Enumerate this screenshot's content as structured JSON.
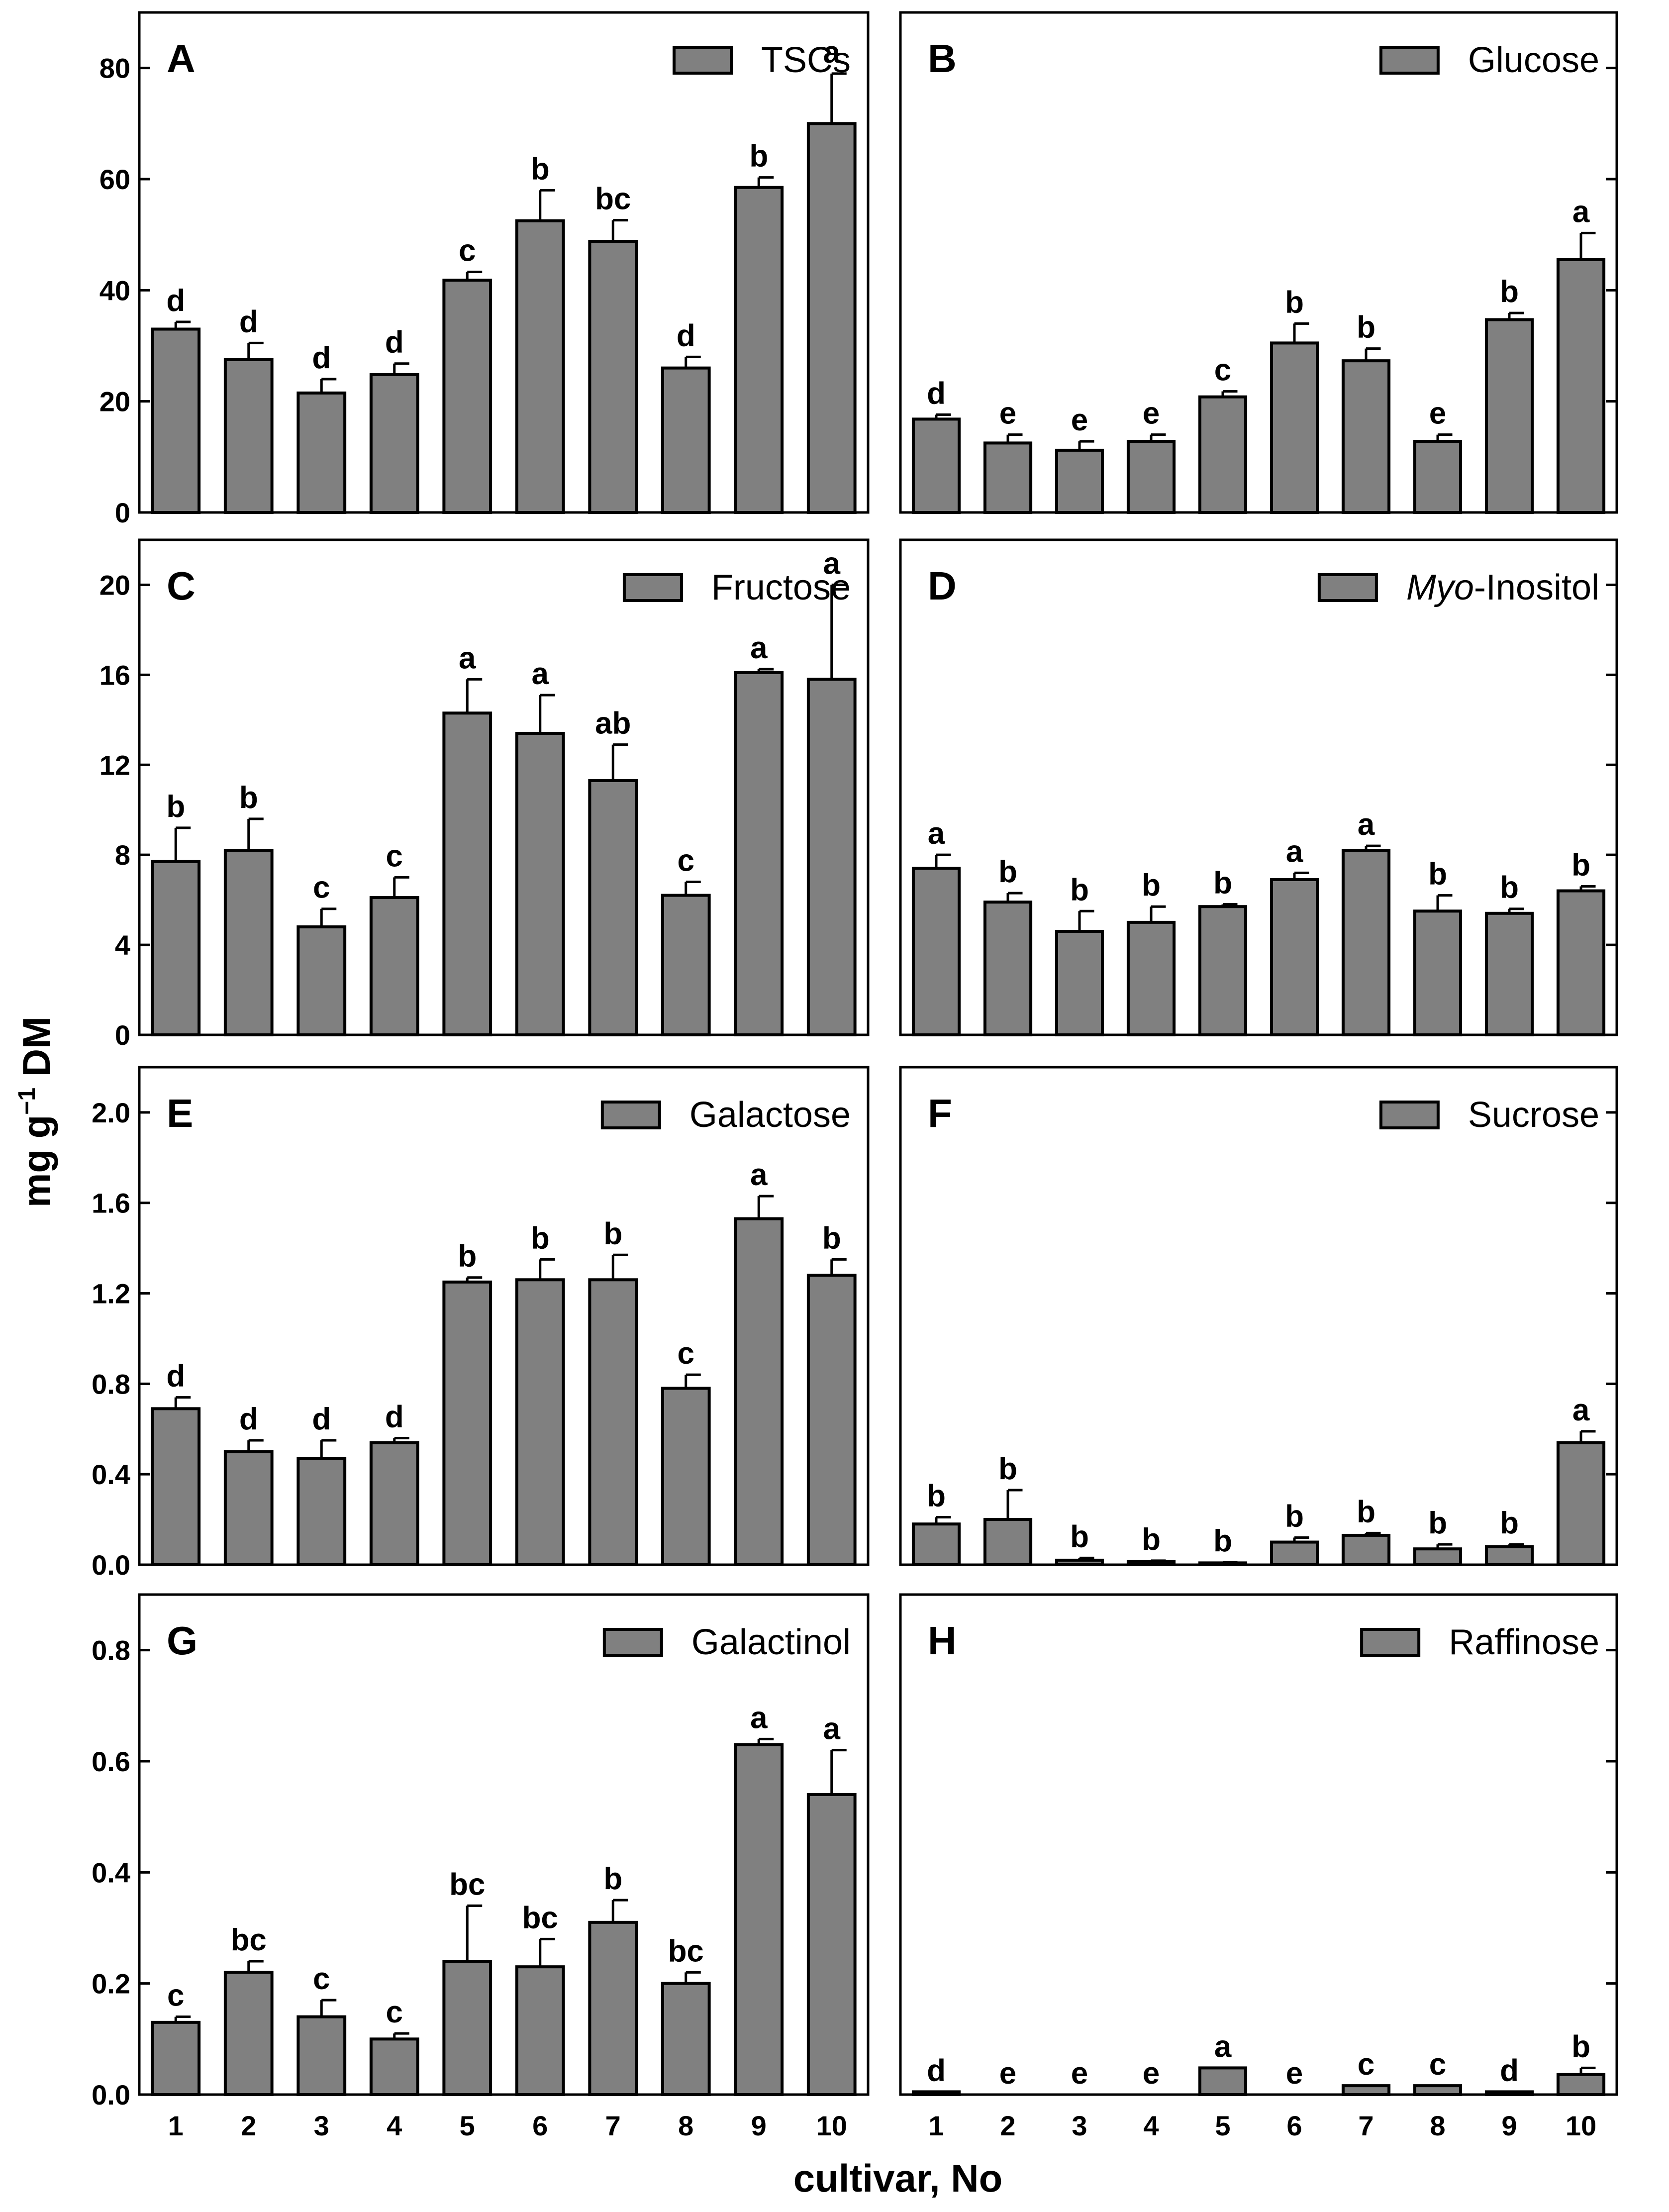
{
  "figure": {
    "ylabel_main": "mg g",
    "ylabel_sup": "−1",
    "ylabel_rest": " DM",
    "xlabel": "cultivar, No"
  },
  "chart_data": [
    {
      "panel": "A",
      "type": "bar",
      "legend": "TSCs",
      "legend_prefix": "",
      "legend_italic": "",
      "categories": [
        "1",
        "2",
        "3",
        "4",
        "5",
        "6",
        "7",
        "8",
        "9",
        "10"
      ],
      "values": [
        33,
        27.5,
        21.5,
        24.8,
        41.8,
        52.5,
        48.8,
        26,
        58.5,
        70
      ],
      "errors": [
        1.3,
        3,
        2.5,
        2,
        1.5,
        5.5,
        3.8,
        2,
        1.8,
        9
      ],
      "letters": [
        "d",
        "d",
        "d",
        "d",
        "c",
        "b",
        "bc",
        "d",
        "b",
        "a"
      ],
      "ylim": [
        0,
        90
      ],
      "yticks": [
        0,
        20,
        40,
        60,
        80
      ],
      "yticklabels": [
        "0",
        "20",
        "40",
        "60",
        "80"
      ]
    },
    {
      "panel": "B",
      "type": "bar",
      "legend": "Glucose",
      "legend_prefix": "",
      "legend_italic": "",
      "categories": [
        "1",
        "2",
        "3",
        "4",
        "5",
        "6",
        "7",
        "8",
        "9",
        "10"
      ],
      "values": [
        16.8,
        12.5,
        11.2,
        12.8,
        20.8,
        30.5,
        27.3,
        12.8,
        34.7,
        45.5
      ],
      "errors": [
        0.8,
        1.5,
        1.6,
        1.2,
        1,
        3.5,
        2.2,
        1.2,
        1.2,
        4.8
      ],
      "letters": [
        "d",
        "e",
        "e",
        "e",
        "c",
        "b",
        "b",
        "e",
        "b",
        "a"
      ],
      "ylim": [
        0,
        90
      ],
      "yticks": [
        0,
        20,
        40,
        60,
        80
      ],
      "yticklabels": []
    },
    {
      "panel": "C",
      "type": "bar",
      "legend": "Fructose",
      "legend_prefix": "",
      "legend_italic": "",
      "categories": [
        "1",
        "2",
        "3",
        "4",
        "5",
        "6",
        "7",
        "8",
        "9",
        "10"
      ],
      "values": [
        7.7,
        8.2,
        4.8,
        6.1,
        14.3,
        13.4,
        11.3,
        6.2,
        16.1,
        15.8
      ],
      "errors": [
        1.5,
        1.4,
        0.8,
        0.9,
        1.5,
        1.7,
        1.6,
        0.6,
        0.15,
        4.2
      ],
      "letters": [
        "b",
        "b",
        "c",
        "c",
        "a",
        "a",
        "ab",
        "c",
        "a",
        "a"
      ],
      "ylim": [
        0,
        22
      ],
      "yticks": [
        0,
        4,
        8,
        12,
        16,
        20
      ],
      "yticklabels": [
        "0",
        "4",
        "8",
        "12",
        "16",
        "20"
      ]
    },
    {
      "panel": "D",
      "type": "bar",
      "legend": "-Inositol",
      "legend_prefix": "",
      "legend_italic": "Myo",
      "categories": [
        "1",
        "2",
        "3",
        "4",
        "5",
        "6",
        "7",
        "8",
        "9",
        "10"
      ],
      "values": [
        7.4,
        5.9,
        4.6,
        5.0,
        5.7,
        6.9,
        8.2,
        5.5,
        5.4,
        6.4
      ],
      "errors": [
        0.6,
        0.4,
        0.9,
        0.7,
        0.1,
        0.3,
        0.2,
        0.7,
        0.2,
        0.2
      ],
      "letters": [
        "a",
        "b",
        "b",
        "b",
        "b",
        "a",
        "a",
        "b",
        "b",
        "b"
      ],
      "ylim": [
        0,
        22
      ],
      "yticks": [
        0,
        4,
        8,
        12,
        16,
        20
      ],
      "yticklabels": []
    },
    {
      "panel": "E",
      "type": "bar",
      "legend": "Galactose",
      "legend_prefix": "",
      "legend_italic": "",
      "categories": [
        "1",
        "2",
        "3",
        "4",
        "5",
        "6",
        "7",
        "8",
        "9",
        "10"
      ],
      "values": [
        0.69,
        0.5,
        0.47,
        0.54,
        1.25,
        1.26,
        1.26,
        0.78,
        1.53,
        1.28
      ],
      "errors": [
        0.05,
        0.05,
        0.08,
        0.02,
        0.02,
        0.09,
        0.11,
        0.06,
        0.1,
        0.07
      ],
      "letters": [
        "d",
        "d",
        "d",
        "d",
        "b",
        "b",
        "b",
        "c",
        "a",
        "b"
      ],
      "ylim": [
        0,
        2.2
      ],
      "yticks": [
        0,
        0.4,
        0.8,
        1.2,
        1.6,
        2.0
      ],
      "yticklabels": [
        "0.0",
        "0.4",
        "0.8",
        "1.2",
        "1.6",
        "2.0"
      ]
    },
    {
      "panel": "F",
      "type": "bar",
      "legend": "Sucrose",
      "legend_prefix": "",
      "legend_italic": "",
      "categories": [
        "1",
        "2",
        "3",
        "4",
        "5",
        "6",
        "7",
        "8",
        "9",
        "10"
      ],
      "values": [
        0.18,
        0.2,
        0.02,
        0.015,
        0.008,
        0.1,
        0.13,
        0.07,
        0.08,
        0.54
      ],
      "errors": [
        0.03,
        0.13,
        0.01,
        0.003,
        0.003,
        0.02,
        0.01,
        0.02,
        0.01,
        0.05
      ],
      "letters": [
        "b",
        "b",
        "b",
        "b",
        "b",
        "b",
        "b",
        "b",
        "b",
        "a"
      ],
      "ylim": [
        0,
        2.2
      ],
      "yticks": [
        0,
        0.4,
        0.8,
        1.2,
        1.6,
        2.0
      ],
      "yticklabels": []
    },
    {
      "panel": "G",
      "type": "bar",
      "legend": "Galactinol",
      "legend_prefix": "",
      "legend_italic": "",
      "categories": [
        "1",
        "2",
        "3",
        "4",
        "5",
        "6",
        "7",
        "8",
        "9",
        "10"
      ],
      "values": [
        0.13,
        0.22,
        0.14,
        0.1,
        0.24,
        0.23,
        0.31,
        0.2,
        0.63,
        0.54
      ],
      "errors": [
        0.01,
        0.02,
        0.03,
        0.01,
        0.1,
        0.05,
        0.04,
        0.02,
        0.01,
        0.08
      ],
      "letters": [
        "c",
        "bc",
        "c",
        "c",
        "bc",
        "bc",
        "b",
        "bc",
        "a",
        "a"
      ],
      "ylim": [
        0,
        0.9
      ],
      "yticks": [
        0,
        0.2,
        0.4,
        0.6,
        0.8
      ],
      "yticklabels": [
        "0.0",
        "0.2",
        "0.4",
        "0.6",
        "0.8"
      ]
    },
    {
      "panel": "H",
      "type": "bar",
      "legend": "Raffinose",
      "legend_prefix": "",
      "legend_italic": "",
      "categories": [
        "1",
        "2",
        "3",
        "4",
        "5",
        "6",
        "7",
        "8",
        "9",
        "10"
      ],
      "values": [
        0.005,
        0,
        0,
        0,
        0.048,
        0,
        0.016,
        0.016,
        0.005,
        0.036
      ],
      "errors": [
        0,
        0,
        0,
        0,
        0,
        0,
        0,
        0,
        0,
        0.012
      ],
      "letters": [
        "d",
        "e",
        "e",
        "e",
        "a",
        "e",
        "c",
        "c",
        "d",
        "b"
      ],
      "ylim": [
        0,
        0.9
      ],
      "yticks": [
        0,
        0.2,
        0.4,
        0.6,
        0.8
      ],
      "yticklabels": []
    }
  ]
}
